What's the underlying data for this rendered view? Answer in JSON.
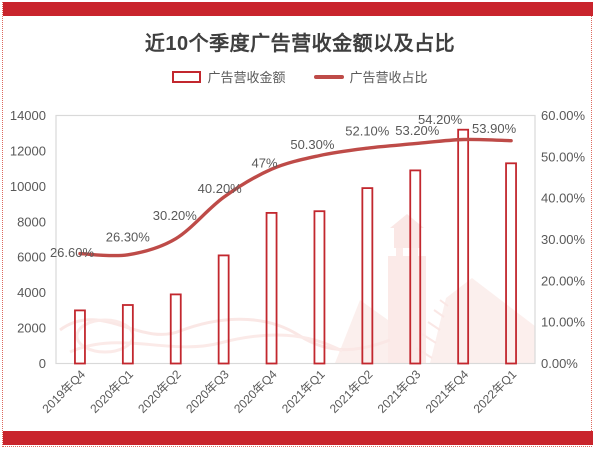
{
  "page": {
    "title": "近10个季度广告营收金额以及占比"
  },
  "legend": {
    "items": [
      {
        "label": "广告营收金额",
        "swatch": "outlined-bar"
      },
      {
        "label": "广告营收占比",
        "swatch": "line"
      }
    ]
  },
  "colors": {
    "accent_bar": "#C9242C",
    "bar_outline": "#C2272E",
    "line": "#BE4B48",
    "text": "#595959",
    "title_text": "#3F3F3F",
    "plot_border": "#D9D9D9",
    "page_border_dotted": "#DD6A5F",
    "watermark": "#EC9A90"
  },
  "chart_data": {
    "type": "bar+line combo",
    "title": "近10个季度广告营收金额以及占比",
    "categories": [
      "2019年Q4",
      "2020年Q1",
      "2020年Q2",
      "2020年Q3",
      "2020年Q4",
      "2021年Q1",
      "2021年Q2",
      "2021年Q3",
      "2021年Q4",
      "2022年Q1"
    ],
    "series": [
      {
        "name": "广告营收金额",
        "type": "bar",
        "axis": "left",
        "values": [
          3000,
          3300,
          3900,
          6100,
          8500,
          8600,
          9900,
          10900,
          13200,
          11300
        ]
      },
      {
        "name": "广告营收占比",
        "type": "line",
        "axis": "right",
        "values": [
          26.6,
          26.3,
          30.2,
          40.2,
          47,
          50.3,
          52.1,
          53.2,
          54.2,
          53.9
        ],
        "labels": [
          "26.60%",
          "26.30%",
          "30.20%",
          "40.20%",
          "47%",
          "50.30%",
          "52.10%",
          "53.20%",
          "54.20%",
          "53.90%"
        ]
      }
    ],
    "left_axis": {
      "min": 0,
      "max": 14000,
      "step": 2000,
      "ticks": [
        "0",
        "2000",
        "4000",
        "6000",
        "8000",
        "10000",
        "12000",
        "14000"
      ]
    },
    "right_axis": {
      "min": 0,
      "max": 60,
      "step": 10,
      "ticks": [
        "0.00%",
        "10.00%",
        "20.00%",
        "30.00%",
        "40.00%",
        "50.00%",
        "60.00%"
      ]
    },
    "grid": false,
    "legend_position": "top"
  }
}
